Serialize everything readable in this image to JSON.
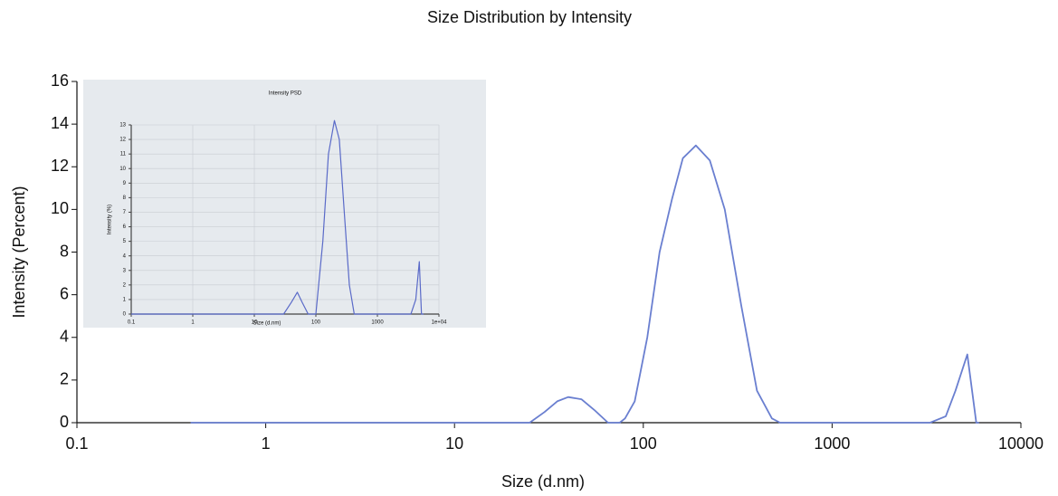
{
  "chart_data": [
    {
      "type": "line",
      "title": "Size Distribution by Intensity",
      "xlabel": "Size (d.nm)",
      "ylabel": "Intensity (Percent)",
      "x": [
        0.4,
        1,
        10,
        25,
        30,
        35,
        40,
        47,
        55,
        65,
        75,
        80,
        90,
        105,
        122,
        142,
        162,
        190,
        225,
        270,
        330,
        400,
        480,
        530,
        1000,
        3300,
        4000,
        4500,
        5200,
        5800,
        6000
      ],
      "values": [
        0,
        0,
        0,
        0,
        0.5,
        1.0,
        1.2,
        1.1,
        0.6,
        0,
        0,
        0.2,
        1,
        4,
        8,
        10.5,
        12.4,
        13,
        12.3,
        10,
        5.5,
        1.5,
        0.2,
        0,
        0,
        0,
        0.3,
        1.5,
        3.2,
        0,
        0
      ],
      "color": "#6a7fd0",
      "xscale": "log",
      "xlim": [
        0.1,
        10000
      ],
      "xticks": [
        0.1,
        1,
        10,
        100,
        1000,
        10000
      ],
      "ylim": [
        0,
        16
      ],
      "yticks": [
        0,
        2,
        4,
        6,
        8,
        10,
        12,
        14,
        16
      ],
      "grid": false
    },
    {
      "type": "line",
      "title": "Intensity PSD",
      "xlabel": "Size (d.nm)",
      "ylabel": "Intensity (%)",
      "x": [
        0.1,
        10,
        30,
        40,
        50,
        60,
        75,
        100,
        130,
        160,
        200,
        240,
        290,
        350,
        420,
        500,
        1000,
        3500,
        4200,
        4800,
        5200,
        5600
      ],
      "values": [
        0,
        0,
        0,
        0.8,
        1.5,
        0.8,
        0,
        0,
        5,
        11,
        13.3,
        12,
        7,
        2,
        0,
        0,
        0,
        0,
        1,
        3.6,
        0,
        0
      ],
      "color": "#5a6ac8",
      "xscale": "log",
      "xlim": [
        0.1,
        10000
      ],
      "xticks": [
        0.1,
        1,
        10,
        100,
        1000,
        {
          "value": 10000,
          "label": "1e+04"
        }
      ],
      "ylim": [
        0,
        13
      ],
      "yticks": [
        0,
        1,
        2,
        3,
        4,
        5,
        6,
        7,
        8,
        9,
        10,
        11,
        12,
        13
      ],
      "grid": true
    }
  ]
}
